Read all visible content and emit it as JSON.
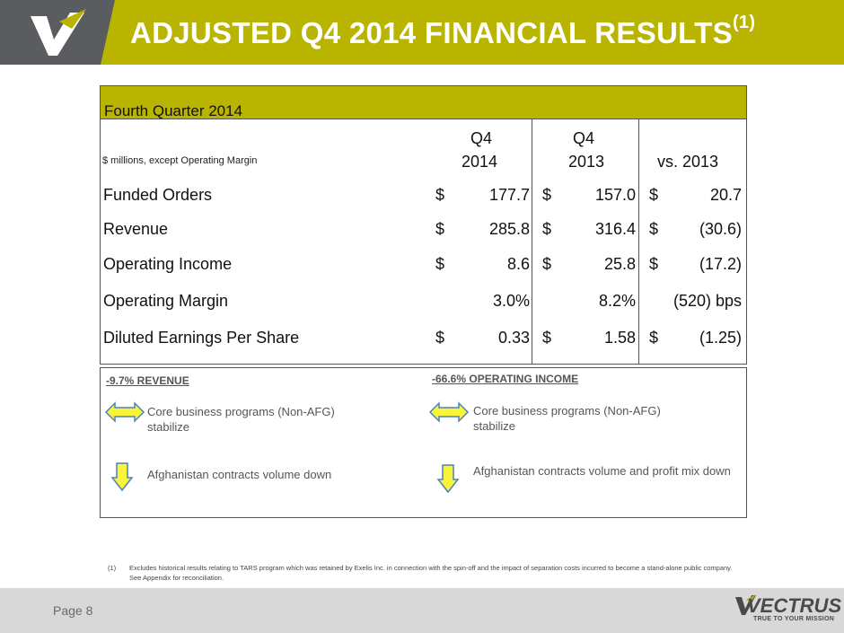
{
  "header": {
    "title": "ADJUSTED Q4 2014 FINANCIAL RESULTS",
    "title_superscript": "(1)",
    "accent_color": "#b9b400",
    "dark_color": "#5a5c60",
    "logo_icon": "vectrus-v-icon"
  },
  "table": {
    "section_title": "Fourth Quarter 2014",
    "units_note": "$ millions, except Operating Margin",
    "columns": [
      {
        "line1": "Q4",
        "line2": "2014"
      },
      {
        "line1": "Q4",
        "line2": "2013"
      },
      {
        "line1": "",
        "line2": "vs. 2013"
      }
    ],
    "rows": [
      {
        "label": "Funded Orders",
        "cells": [
          {
            "cur": "$",
            "val": "177.7"
          },
          {
            "cur": "$",
            "val": "157.0"
          },
          {
            "cur": "$",
            "val": "20.7"
          }
        ]
      },
      {
        "label": "Revenue",
        "cells": [
          {
            "cur": "$",
            "val": "285.8"
          },
          {
            "cur": "$",
            "val": "316.4"
          },
          {
            "cur": "$",
            "val": "(30.6)"
          }
        ]
      },
      {
        "label": "Operating Income",
        "cells": [
          {
            "cur": "$",
            "val": "8.6"
          },
          {
            "cur": "$",
            "val": "25.8"
          },
          {
            "cur": "$",
            "val": "(17.2)"
          }
        ]
      },
      {
        "label": "Operating Margin",
        "cells": [
          {
            "cur": "",
            "val": "3.0%"
          },
          {
            "cur": "",
            "val": "8.2%"
          },
          {
            "cur": "",
            "val": "(520) bps"
          }
        ]
      },
      {
        "label": "Diluted Earnings Per Share",
        "cells": [
          {
            "cur": "$",
            "val": "0.33"
          },
          {
            "cur": "$",
            "val": "1.58"
          },
          {
            "cur": "$",
            "val": "(1.25)"
          }
        ]
      }
    ]
  },
  "drivers": {
    "left": {
      "title": "-9.7% REVENUE",
      "items": [
        {
          "icon": "left-right-arrow-icon",
          "text": "Core business programs (Non-AFG) stabilize"
        },
        {
          "icon": "down-arrow-icon",
          "text": "Afghanistan contracts volume down"
        }
      ]
    },
    "right": {
      "title": "-66.6% OPERATING INCOME",
      "items": [
        {
          "icon": "left-right-arrow-icon",
          "text": "Core business programs (Non-AFG) stabilize"
        },
        {
          "icon": "down-arrow-icon",
          "text": "Afghanistan contracts volume and profit mix down"
        }
      ]
    },
    "arrow_fill": "#f7f43a",
    "arrow_stroke": "#4f81bd"
  },
  "footnote": {
    "marker": "(1)",
    "text": "Excludes  historical results relating to TARS program which was retained by Exelis Inc. in connection with the spin-off and the impact of separation costs incurred to become a stand-alone public company.  See Appendix for reconciliation."
  },
  "footer": {
    "page_label": "Page 8",
    "brand_name": "VECTRUS",
    "brand_tagline": "TRUE TO YOUR MISSION"
  }
}
